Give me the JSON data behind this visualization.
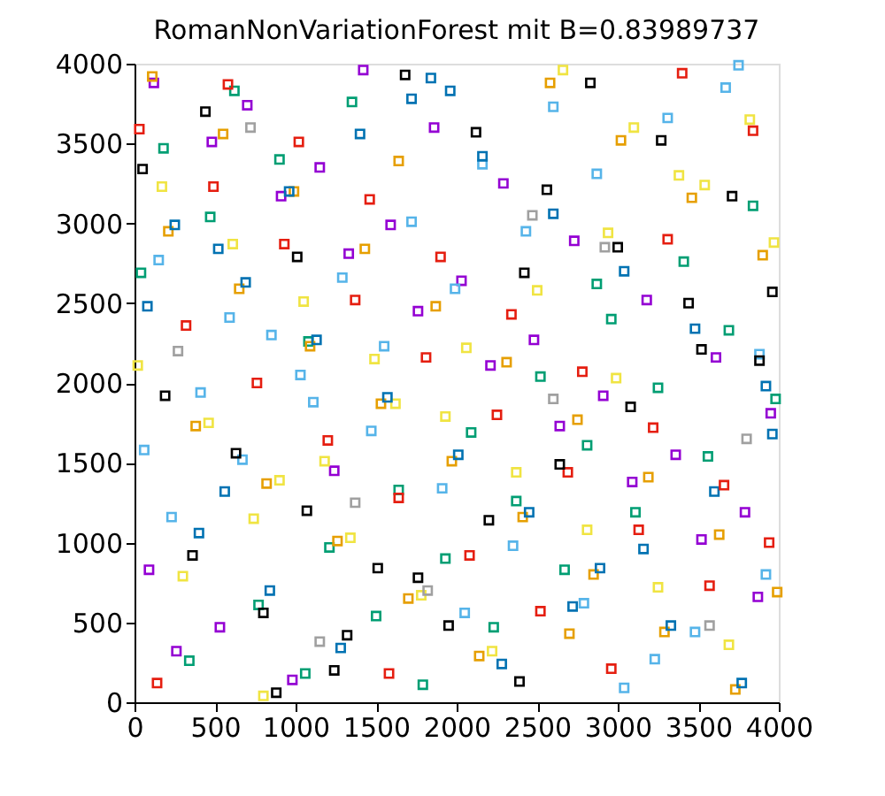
{
  "chart_data": {
    "type": "scatter",
    "title": "RomanNonVariationForest mit B=0.83989737",
    "xlim": [
      0,
      4000
    ],
    "ylim": [
      0,
      4000
    ],
    "xticks": [
      0,
      500,
      1000,
      1500,
      2000,
      2500,
      3000,
      3500,
      4000
    ],
    "yticks": [
      0,
      500,
      1000,
      1500,
      2000,
      2500,
      3000,
      3500,
      4000
    ],
    "marker": "square",
    "grid": false,
    "legend": false,
    "series": [
      {
        "color": "#9400d3",
        "x": [
          120,
          480,
          910,
          1330,
          1760,
          2210,
          2640,
          3090,
          3520,
          3870,
          260,
          700,
          1150,
          1590,
          2030,
          2480,
          2910,
          3360,
          3790,
          90,
          530,
          980,
          1420,
          1860,
          2290,
          2730,
          3180,
          3610,
          3950,
          1240
        ],
        "values": [
          3880,
          3510,
          3170,
          2810,
          2450,
          2110,
          1730,
          1380,
          1020,
          660,
          320,
          3740,
          3350,
          2990,
          2640,
          2270,
          1920,
          1550,
          1190,
          830,
          470,
          140,
          3960,
          3600,
          3250,
          2890,
          2520,
          2160,
          1810,
          1450
        ]
      },
      {
        "color": "#009e73",
        "x": [
          340,
          770,
          1210,
          1640,
          2090,
          2520,
          2960,
          3410,
          3840,
          180,
          620,
          1060,
          1500,
          1930,
          2370,
          2810,
          3250,
          3690,
          40,
          470,
          900,
          1350,
          1790,
          2230,
          2670,
          3110,
          3560,
          3980,
          1080,
          2870
        ],
        "values": [
          260,
          610,
          970,
          1330,
          1690,
          2040,
          2400,
          2760,
          3110,
          3470,
          3830,
          180,
          540,
          900,
          1260,
          1610,
          1970,
          2330,
          2690,
          3040,
          3400,
          3760,
          110,
          470,
          830,
          1190,
          1540,
          1900,
          2260,
          2620
        ]
      },
      {
        "color": "#56b4e9",
        "x": [
          60,
          410,
          850,
          1290,
          1720,
          2160,
          2600,
          3040,
          3480,
          3920,
          230,
          670,
          1110,
          1550,
          1990,
          2430,
          2870,
          3310,
          3750,
          150,
          590,
          1030,
          1470,
          1910,
          2350,
          2790,
          3230,
          3670,
          3880,
          2050
        ],
        "values": [
          1580,
          1940,
          2300,
          2660,
          3010,
          3370,
          3730,
          90,
          440,
          800,
          1160,
          1520,
          1880,
          2230,
          2590,
          2950,
          3310,
          3660,
          3990,
          2770,
          2410,
          2050,
          1700,
          1340,
          980,
          620,
          270,
          3850,
          2180,
          560
        ]
      },
      {
        "color": "#e69f00",
        "x": [
          210,
          650,
          1090,
          1530,
          1970,
          2410,
          2850,
          3290,
          3730,
          110,
          550,
          990,
          1430,
          1870,
          2310,
          2750,
          3190,
          3630,
          3990,
          380,
          820,
          1260,
          1700,
          2140,
          2580,
          3020,
          3460,
          3900,
          1640,
          2700
        ],
        "values": [
          2950,
          2590,
          2230,
          1870,
          1510,
          1160,
          800,
          440,
          80,
          3920,
          3560,
          3200,
          2840,
          2480,
          2130,
          1770,
          1410,
          1050,
          690,
          1730,
          1370,
          1010,
          650,
          290,
          3880,
          3520,
          3160,
          2800,
          3390,
          430
        ]
      },
      {
        "color": "#f0e442",
        "x": [
          300,
          740,
          1180,
          1620,
          2060,
          2500,
          2940,
          3380,
          3820,
          20,
          460,
          900,
          1340,
          1780,
          2220,
          2660,
          3100,
          3540,
          3970,
          170,
          610,
          1050,
          1490,
          1930,
          2370,
          2810,
          3250,
          3690,
          800,
          2990
        ],
        "values": [
          790,
          1150,
          1510,
          1870,
          2220,
          2580,
          2940,
          3300,
          3650,
          2110,
          1750,
          1390,
          1030,
          670,
          320,
          3960,
          3600,
          3240,
          2880,
          3230,
          2870,
          2510,
          2150,
          1790,
          1440,
          1080,
          720,
          360,
          40,
          2030
        ]
      },
      {
        "color": "#0072b2",
        "x": [
          80,
          520,
          960,
          1400,
          1840,
          2280,
          2720,
          3160,
          3600,
          3960,
          250,
          690,
          1130,
          1570,
          2010,
          2450,
          2890,
          3330,
          3770,
          400,
          840,
          1280,
          1720,
          2160,
          2600,
          3040,
          3480,
          3920,
          1960,
          560
        ],
        "values": [
          2480,
          2840,
          3200,
          3560,
          3910,
          240,
          600,
          960,
          1320,
          1680,
          2990,
          2630,
          2270,
          1910,
          1550,
          1190,
          840,
          480,
          120,
          1060,
          700,
          340,
          3780,
          3420,
          3060,
          2700,
          2340,
          1980,
          3830,
          1320
        ]
      },
      {
        "color": "#e51e10",
        "x": [
          140,
          580,
          1020,
          1460,
          1900,
          2340,
          2780,
          3220,
          3660,
          3940,
          320,
          760,
          1200,
          1640,
          2080,
          2520,
          2960,
          3400,
          3840,
          30,
          490,
          930,
          1370,
          1810,
          2250,
          2690,
          3130,
          3570,
          1580,
          3310
        ],
        "values": [
          120,
          3870,
          3510,
          3150,
          2790,
          2430,
          2070,
          1720,
          1360,
          1000,
          2360,
          2000,
          1640,
          1280,
          920,
          570,
          210,
          3940,
          3580,
          3590,
          3230,
          2870,
          2520,
          2160,
          1800,
          1440,
          1080,
          730,
          180,
          2900
        ]
      },
      {
        "color": "#000000",
        "x": [
          190,
          630,
          1070,
          1510,
          1950,
          2390,
          2830,
          3270,
          3710,
          50,
          440,
          880,
          1320,
          1760,
          2200,
          2640,
          3080,
          3520,
          3960,
          360,
          800,
          1240,
          1680,
          2120,
          2560,
          3000,
          3440,
          3880,
          2420,
          1010
        ],
        "values": [
          1920,
          1560,
          1200,
          840,
          480,
          130,
          3880,
          3520,
          3170,
          3340,
          3700,
          60,
          420,
          780,
          1140,
          1490,
          1850,
          2210,
          2570,
          920,
          560,
          200,
          3930,
          3570,
          3210,
          2850,
          2500,
          2140,
          2690,
          2790
        ]
      },
      {
        "color": "#a0a0a0",
        "x": [
          270,
          1370,
          2470,
          3570,
          720,
          1820,
          2920,
          3800,
          1150,
          2600
        ],
        "values": [
          2200,
          1250,
          3050,
          480,
          3600,
          700,
          2850,
          1650,
          380,
          1900
        ]
      }
    ]
  }
}
